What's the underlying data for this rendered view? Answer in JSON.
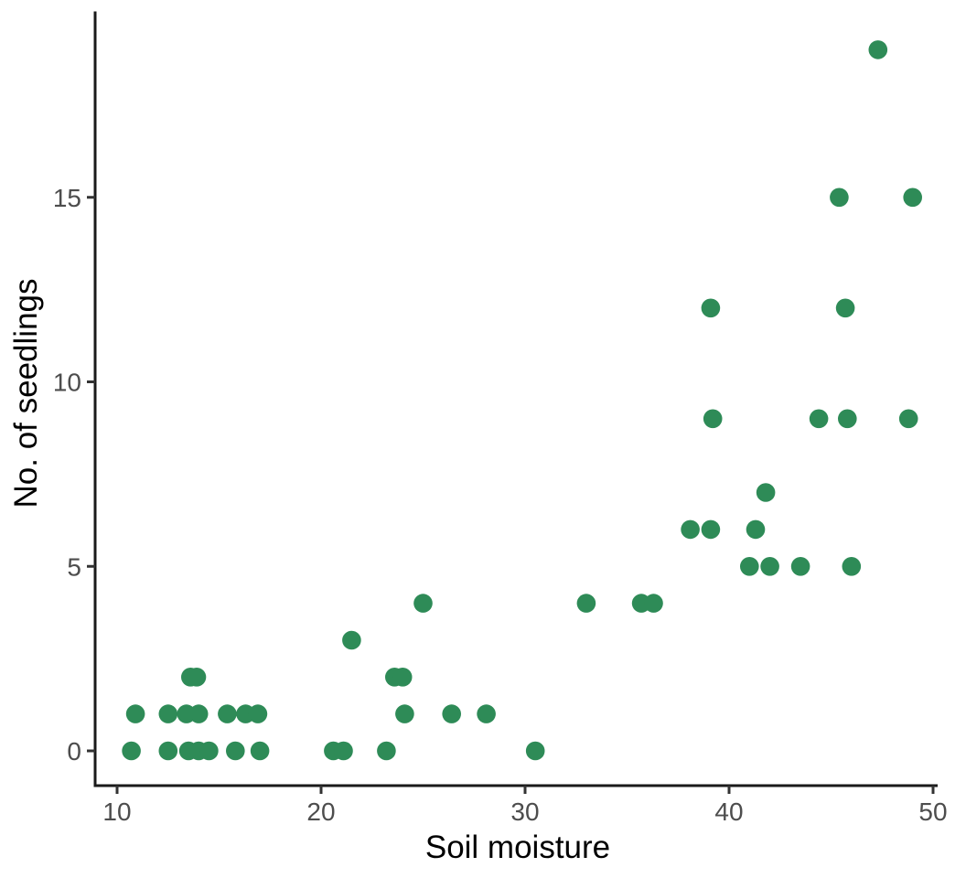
{
  "chart_data": {
    "type": "scatter",
    "title": "",
    "xlabel": "Soil moisture",
    "ylabel": "No. of seedlings",
    "x_ticks": [
      "10",
      "20",
      "30",
      "40",
      "50"
    ],
    "x_tick_values": [
      10,
      20,
      30,
      40,
      50
    ],
    "y_ticks": [
      "0",
      "5",
      "10",
      "15"
    ],
    "y_tick_values": [
      0,
      5,
      10,
      15
    ],
    "xlim": [
      8.9,
      51.5
    ],
    "ylim": [
      -0.95,
      20.3
    ],
    "grid": false,
    "legend_position": "none",
    "point_color": "#2e8b57",
    "axis_line_color": "#1a1a1a",
    "tick_mark_color": "#333333",
    "tick_label_color": "#4d4d4d",
    "background_color": "#ffffff",
    "points": [
      [
        10.7,
        0
      ],
      [
        12.5,
        0
      ],
      [
        13.5,
        0
      ],
      [
        14.0,
        0
      ],
      [
        14.5,
        0
      ],
      [
        15.8,
        0
      ],
      [
        17.0,
        0
      ],
      [
        20.6,
        0
      ],
      [
        21.1,
        0
      ],
      [
        23.2,
        0
      ],
      [
        30.5,
        0
      ],
      [
        10.9,
        1
      ],
      [
        12.5,
        1
      ],
      [
        13.4,
        1
      ],
      [
        14.0,
        1
      ],
      [
        15.4,
        1
      ],
      [
        16.3,
        1
      ],
      [
        16.9,
        1
      ],
      [
        24.1,
        1
      ],
      [
        26.4,
        1
      ],
      [
        28.1,
        1
      ],
      [
        13.6,
        2
      ],
      [
        13.9,
        2
      ],
      [
        23.6,
        2
      ],
      [
        24.0,
        2
      ],
      [
        21.5,
        3
      ],
      [
        25.0,
        4
      ],
      [
        33.0,
        4
      ],
      [
        35.7,
        4
      ],
      [
        36.3,
        4
      ],
      [
        41.0,
        5
      ],
      [
        42.0,
        5
      ],
      [
        43.5,
        5
      ],
      [
        46.0,
        5
      ],
      [
        38.1,
        6
      ],
      [
        39.1,
        6
      ],
      [
        41.3,
        6
      ],
      [
        41.8,
        7
      ],
      [
        39.2,
        9
      ],
      [
        44.4,
        9
      ],
      [
        45.8,
        9
      ],
      [
        48.8,
        9
      ],
      [
        39.1,
        12
      ],
      [
        45.7,
        12
      ],
      [
        45.4,
        15
      ],
      [
        49.0,
        15
      ],
      [
        47.3,
        19
      ]
    ]
  }
}
